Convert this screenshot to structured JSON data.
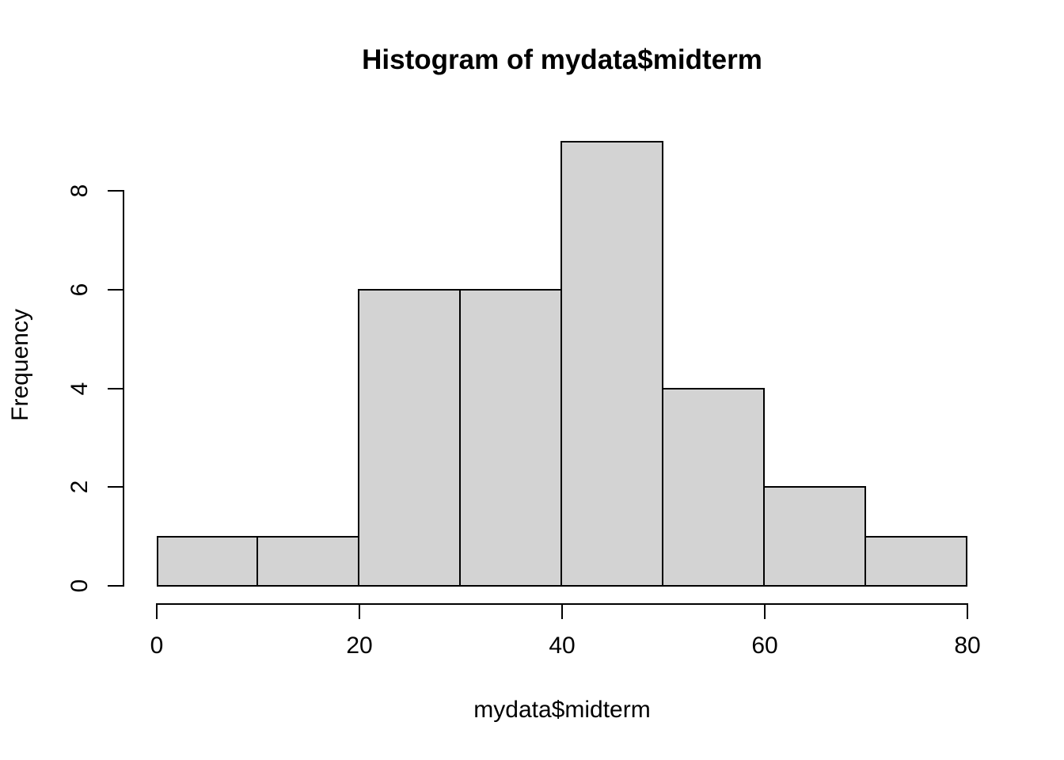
{
  "chart_data": {
    "type": "histogram",
    "title": "Histogram of mydata$midterm",
    "xlabel": "mydata$midterm",
    "ylabel": "Frequency",
    "bin_edges": [
      0,
      10,
      20,
      30,
      40,
      50,
      60,
      70,
      80
    ],
    "counts": [
      1,
      1,
      6,
      6,
      9,
      4,
      2,
      1
    ],
    "x_ticks": [
      0,
      20,
      40,
      60,
      80
    ],
    "y_ticks": [
      0,
      2,
      4,
      6,
      8
    ],
    "xlim": [
      0,
      80
    ],
    "ylim": [
      0,
      8
    ],
    "grid": "off",
    "legend": "none",
    "bar_fill": "#d3d3d3",
    "bar_border": "#000000",
    "axis_color": "#000000",
    "text_color": "#000000",
    "background": "#ffffff"
  }
}
